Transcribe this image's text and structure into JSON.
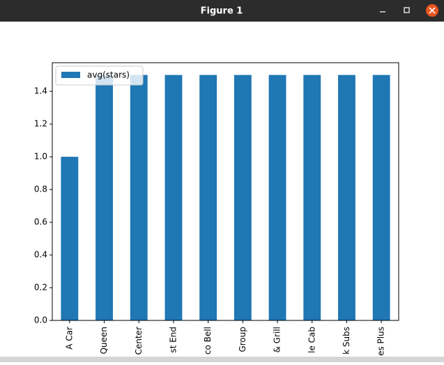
{
  "window": {
    "title": "Figure 1"
  },
  "chart_data": {
    "type": "bar",
    "categories": [
      "A Car",
      "Queen",
      "Center",
      "st End",
      "co Bell",
      "Group",
      "& Grill",
      "le Cab",
      "k Subs",
      "es Plus"
    ],
    "series": [
      {
        "name": "avg(stars)",
        "color": "#1f77b4",
        "values": [
          1.0,
          1.5,
          1.5,
          1.5,
          1.5,
          1.5,
          1.5,
          1.5,
          1.5,
          1.5
        ]
      }
    ],
    "ylim": [
      0,
      1.575
    ],
    "yticks": [
      {
        "value": 0,
        "label": "0.0"
      },
      0.2,
      0.4,
      0.6,
      0.8,
      {
        "value": 1,
        "label": "1.0"
      },
      1.2,
      1.4
    ],
    "legend": "upper left"
  }
}
